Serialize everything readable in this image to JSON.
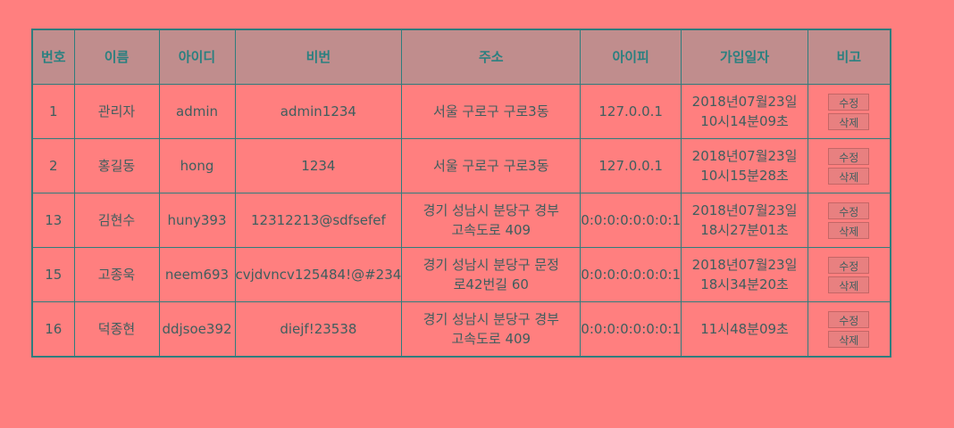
{
  "table": {
    "headers": [
      "번호",
      "이름",
      "아이디",
      "비번",
      "주소",
      "아이피",
      "가입일자",
      "비고"
    ],
    "edit_label": "수정",
    "delete_label": "삭제",
    "rows": [
      {
        "no": "1",
        "name": "관리자",
        "id": "admin",
        "pw": "admin1234",
        "addr": [
          "서울 구로구 구로3동"
        ],
        "ip": "127.0.0.1",
        "joined": [
          "2018년07월23일",
          "10시14분09초"
        ]
      },
      {
        "no": "2",
        "name": "홍길동",
        "id": "hong",
        "pw": "1234",
        "addr": [
          "서울 구로구 구로3동"
        ],
        "ip": "127.0.0.1",
        "joined": [
          "2018년07월23일",
          "10시15분28초"
        ]
      },
      {
        "no": "13",
        "name": "김현수",
        "id": "huny393",
        "pw": "12312213@sdfsefef",
        "addr": [
          "경기 성남시 분당구 경부",
          "고속도로 409"
        ],
        "ip": "0:0:0:0:0:0:0:1",
        "joined": [
          "2018년07월23일",
          "18시27분01초"
        ]
      },
      {
        "no": "15",
        "name": "고종욱",
        "id": "neem693",
        "pw": "cvjdvncv125484!@#234",
        "addr": [
          "경기 성남시 분당구 문정",
          "로42번길 60"
        ],
        "ip": "0:0:0:0:0:0:0:1",
        "joined": [
          "2018년07월23일",
          "18시34분20초"
        ]
      },
      {
        "no": "16",
        "name": "덕종현",
        "id": "ddjsoe392",
        "pw": "diejf!23538",
        "addr": [
          "경기 성남시 분당구 경부",
          "고속도로 409"
        ],
        "ip": "0:0:0:0:0:0:0:1",
        "joined": [
          "11시48분09초"
        ]
      }
    ]
  }
}
